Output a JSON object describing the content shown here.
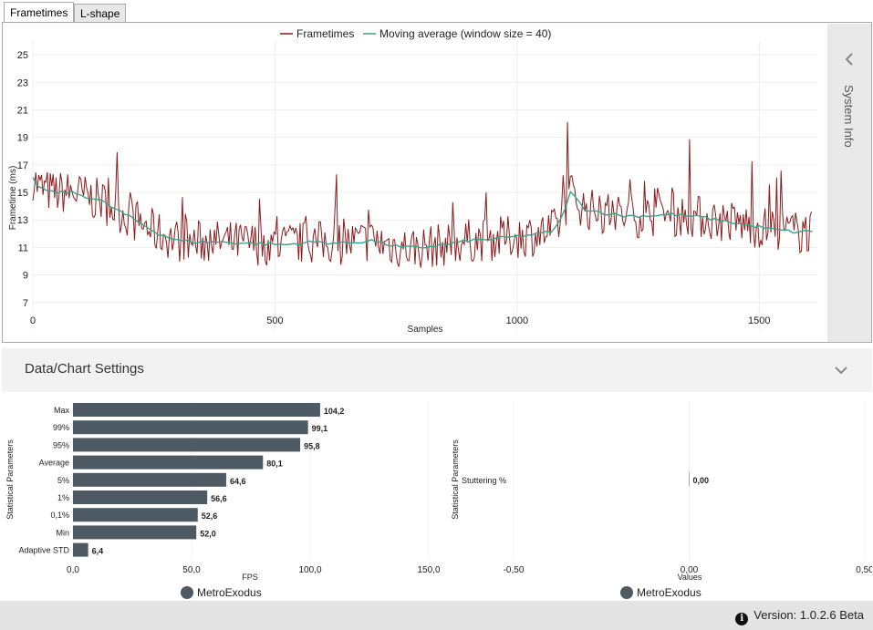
{
  "tabs": [
    "Frametimes",
    "L-shape"
  ],
  "sidebar": {
    "label": "System Info"
  },
  "settings": {
    "title": "Data/Chart Settings"
  },
  "status": {
    "version": "Version: 1.0.2.6 Beta",
    "info_icon": "info-icon"
  },
  "colors": {
    "frametimes": "#8b1a1a",
    "moving_average": "#3aa08c",
    "bars": "#4d5a64"
  },
  "chart_data": [
    {
      "type": "line",
      "legend": [
        "Frametimes",
        "Moving average (window size = 40)"
      ],
      "xlabel": "Samples",
      "ylabel": "Frametime (ms)",
      "xlim": [
        0,
        1620
      ],
      "ylim": [
        5,
        26
      ],
      "xticks": [
        0,
        500,
        1000,
        1500
      ],
      "xtick_labels": [
        "0",
        "500",
        "1000",
        "1500"
      ],
      "yticks": [
        7,
        9,
        11,
        13,
        15,
        17,
        19,
        21,
        23,
        25
      ],
      "ytick_labels": [
        "7",
        "9",
        "11",
        "13",
        "15",
        "17",
        "19",
        "21",
        "23",
        "25"
      ],
      "series": [
        {
          "name": "Moving average (window size = 40)",
          "x": [
            0,
            15,
            40,
            80,
            140,
            200,
            260,
            300,
            330,
            380,
            450,
            520,
            580,
            640,
            700,
            760,
            800,
            850,
            900,
            950,
            1000,
            1050,
            1075,
            1090,
            1110,
            1140,
            1180,
            1220,
            1270,
            1320,
            1380,
            1430,
            1480,
            1530,
            1580,
            1610
          ],
          "y": [
            16.0,
            15.3,
            15.0,
            15.0,
            14.4,
            13.2,
            12.0,
            11.5,
            11.4,
            11.4,
            11.3,
            11.2,
            11.4,
            11.3,
            11.5,
            11.0,
            11.0,
            11.2,
            11.5,
            11.6,
            11.8,
            12.0,
            12.2,
            13.0,
            15.0,
            13.8,
            13.5,
            13.3,
            13.3,
            13.4,
            13.2,
            12.9,
            12.6,
            12.3,
            12.1,
            12.2
          ]
        },
        {
          "name": "Frametimes",
          "x": [
            0,
            15,
            40,
            80,
            140,
            200,
            260,
            300,
            330,
            380,
            450,
            520,
            580,
            640,
            700,
            760,
            800,
            850,
            900,
            950,
            1000,
            1050,
            1075,
            1090,
            1110,
            1140,
            1180,
            1220,
            1270,
            1320,
            1380,
            1430,
            1480,
            1530,
            1580,
            1610
          ],
          "y": [
            16.0,
            15.3,
            15.0,
            15.0,
            14.4,
            13.2,
            12.0,
            11.5,
            11.4,
            11.4,
            11.3,
            11.2,
            11.4,
            11.3,
            11.5,
            11.0,
            11.0,
            11.2,
            11.5,
            11.6,
            11.8,
            12.0,
            12.2,
            13.0,
            15.0,
            13.8,
            13.5,
            13.3,
            13.3,
            13.4,
            13.2,
            12.9,
            12.6,
            12.3,
            12.1,
            12.2
          ],
          "spread": 1.6
        }
      ]
    },
    {
      "type": "bar",
      "orientation": "horizontal",
      "categories": [
        "Max",
        "99%",
        "95%",
        "Average",
        "5%",
        "1%",
        "0,1%",
        "Min",
        "Adaptive STD"
      ],
      "values": [
        104.2,
        99.1,
        95.8,
        80.1,
        64.6,
        56.6,
        52.6,
        52.0,
        6.4
      ],
      "value_labels": [
        "104,2",
        "99,1",
        "95,8",
        "80,1",
        "64,6",
        "56,6",
        "52,6",
        "52,0",
        "6,4"
      ],
      "xlabel": "FPS",
      "ylabel": "Statistical Parameters",
      "xlim": [
        0,
        150
      ],
      "xticks": [
        0,
        50,
        100,
        150
      ],
      "xtick_labels": [
        "0,0",
        "50,0",
        "100,0",
        "150,0"
      ],
      "legend": "MetroExodus"
    },
    {
      "type": "bar",
      "orientation": "horizontal",
      "categories": [
        "Stuttering %"
      ],
      "values": [
        0.0
      ],
      "value_labels": [
        "0,00"
      ],
      "xlabel": "Values",
      "ylabel": "Statistical Parameters",
      "xlim": [
        -0.5,
        0.5
      ],
      "xticks": [
        -0.5,
        0.0,
        0.5
      ],
      "xtick_labels": [
        "-0,50",
        "0,00",
        "0,50"
      ],
      "legend": "MetroExodus"
    }
  ]
}
